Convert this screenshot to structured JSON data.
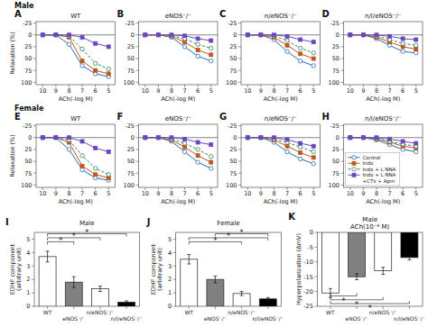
{
  "chart_data": [
    {
      "type": "line",
      "title": "WT",
      "x_label": "ACh(-log M)",
      "y_label": "Relaxation (%)",
      "categories": [
        "10",
        "9",
        "8",
        "7",
        "6",
        "5"
      ],
      "ylim": [
        105,
        -28
      ],
      "yticks": [
        -25,
        0,
        25,
        50,
        75,
        100
      ],
      "series": [
        {
          "name": "Control",
          "marker": "circle-open",
          "line_style": "solid",
          "values": [
            0,
            0,
            20,
            65,
            82,
            88
          ]
        },
        {
          "name": "Indo",
          "marker": "square-filled",
          "line_style": "solid",
          "values": [
            0,
            0,
            5,
            55,
            75,
            82
          ]
        },
        {
          "name": "Indo + L·NNA",
          "marker": "circle-open",
          "line_style": "dashed",
          "values": [
            0,
            0,
            2,
            30,
            60,
            72
          ]
        },
        {
          "name": "Indo + L·NNA\n+CTx + Apm",
          "marker": "square-filled",
          "line_style": "solid",
          "values": [
            0,
            0,
            0,
            5,
            18,
            25
          ]
        }
      ],
      "annotations": [
        {
          "text": "A"
        },
        {
          "text": "Male"
        },
        {
          "y": 0
        }
      ]
    },
    {
      "type": "line",
      "title": "eNOS⁻/⁻",
      "x_label": "ACh(-log M)",
      "categories": [
        "10",
        "9",
        "8",
        "7",
        "6",
        "5"
      ],
      "ylim": [
        105,
        -28
      ],
      "yticks": [
        -25,
        0,
        25,
        50,
        75,
        100
      ],
      "series": [
        {
          "name": "Control",
          "marker": "circle-open",
          "line_style": "solid",
          "values": [
            0,
            0,
            5,
            25,
            45,
            55
          ]
        },
        {
          "name": "Indo",
          "marker": "square-filled",
          "line_style": "solid",
          "values": [
            0,
            0,
            3,
            15,
            32,
            42
          ]
        },
        {
          "name": "Indo + L·NNA",
          "marker": "circle-open",
          "line_style": "dashed",
          "values": [
            0,
            0,
            2,
            8,
            20,
            28
          ]
        },
        {
          "name": "Indo + L·NNA\n+CTx + Apm",
          "marker": "square-filled",
          "line_style": "solid",
          "values": [
            0,
            0,
            0,
            2,
            8,
            12
          ]
        }
      ],
      "annotations": [
        {
          "text": "B"
        },
        {
          "y": 0
        }
      ]
    },
    {
      "type": "line",
      "title": "n/eNOS⁻/⁻",
      "x_label": "ACh(-log M)",
      "categories": [
        "10",
        "9",
        "8",
        "7",
        "6",
        "5"
      ],
      "ylim": [
        105,
        -28
      ],
      "yticks": [
        -25,
        0,
        25,
        50,
        75,
        100
      ],
      "series": [
        {
          "name": "Control",
          "marker": "circle-open",
          "line_style": "solid",
          "values": [
            0,
            0,
            10,
            35,
            55,
            65
          ]
        },
        {
          "name": "Indo",
          "marker": "square-filled",
          "line_style": "solid",
          "values": [
            0,
            0,
            5,
            22,
            40,
            50
          ]
        },
        {
          "name": "Indo + L·NNA",
          "marker": "circle-open",
          "line_style": "dashed",
          "values": [
            0,
            0,
            2,
            12,
            28,
            38
          ]
        },
        {
          "name": "Indo + L·NNA\n+CTx + Apm",
          "marker": "square-filled",
          "line_style": "solid",
          "values": [
            0,
            0,
            0,
            3,
            10,
            15
          ]
        }
      ],
      "annotations": [
        {
          "text": "C"
        },
        {
          "y": 0
        }
      ]
    },
    {
      "type": "line",
      "title": "n/l/eNOS⁻/⁻",
      "x_label": "ACh(-log M)",
      "categories": [
        "10",
        "9",
        "8",
        "7",
        "6",
        "5"
      ],
      "ylim": [
        105,
        -28
      ],
      "yticks": [
        -25,
        0,
        25,
        50,
        75,
        100
      ],
      "series": [
        {
          "name": "Control",
          "marker": "circle-open",
          "line_style": "solid",
          "values": [
            0,
            0,
            8,
            22,
            35,
            38
          ]
        },
        {
          "name": "Indo",
          "marker": "square-filled",
          "line_style": "solid",
          "values": [
            0,
            0,
            5,
            15,
            25,
            30
          ]
        },
        {
          "name": "Indo + L·NNA",
          "marker": "circle-open",
          "line_style": "dashed",
          "values": [
            0,
            0,
            2,
            10,
            18,
            22
          ]
        },
        {
          "name": "Indo + L·NNA\n+CTx + Apm",
          "marker": "square-filled",
          "line_style": "solid",
          "values": [
            0,
            0,
            0,
            3,
            8,
            10
          ]
        }
      ],
      "annotations": [
        {
          "text": "D"
        },
        {
          "y": 0
        }
      ]
    },
    {
      "type": "line",
      "title": "WT",
      "x_label": "ACh(-log M)",
      "y_label": "Relaxation (%)",
      "categories": [
        "10",
        "9",
        "8",
        "7",
        "6",
        "5"
      ],
      "ylim": [
        105,
        -28
      ],
      "yticks": [
        -25,
        0,
        25,
        50,
        75,
        100
      ],
      "series": [
        {
          "name": "Control",
          "marker": "circle-open",
          "line_style": "solid",
          "values": [
            0,
            0,
            25,
            68,
            85,
            90
          ]
        },
        {
          "name": "Indo",
          "marker": "square-filled",
          "line_style": "solid",
          "values": [
            0,
            0,
            10,
            60,
            78,
            85
          ]
        },
        {
          "name": "Indo + L·NNA",
          "marker": "circle-open",
          "line_style": "dashed",
          "values": [
            0,
            0,
            5,
            38,
            65,
            78
          ]
        },
        {
          "name": "Indo + L·NNA\n+CTx + Apm",
          "marker": "square-filled",
          "line_style": "solid",
          "values": [
            0,
            0,
            0,
            8,
            22,
            30
          ]
        }
      ],
      "annotations": [
        {
          "text": "E"
        },
        {
          "text": "Female"
        },
        {
          "y": 0
        }
      ]
    },
    {
      "type": "line",
      "title": "eNOS⁻/⁻",
      "x_label": "ACh(-log M)",
      "categories": [
        "10",
        "9",
        "8",
        "7",
        "6",
        "5"
      ],
      "ylim": [
        105,
        -28
      ],
      "yticks": [
        -25,
        0,
        25,
        50,
        75,
        100
      ],
      "series": [
        {
          "name": "Control",
          "marker": "circle-open",
          "line_style": "solid",
          "values": [
            0,
            0,
            8,
            30,
            52,
            65
          ]
        },
        {
          "name": "Indo",
          "marker": "square-filled",
          "line_style": "solid",
          "values": [
            0,
            0,
            5,
            20,
            38,
            52
          ]
        },
        {
          "name": "Indo + L·NNA",
          "marker": "circle-open",
          "line_style": "dashed",
          "values": [
            0,
            0,
            3,
            12,
            25,
            40
          ]
        },
        {
          "name": "Indo + L·NNA\n+CTx + Apm",
          "marker": "square-filled",
          "line_style": "solid",
          "values": [
            0,
            0,
            0,
            3,
            10,
            15
          ]
        }
      ],
      "annotations": [
        {
          "text": "F"
        },
        {
          "y": 0
        }
      ]
    },
    {
      "type": "line",
      "title": "n/eNOS⁻/⁻",
      "x_label": "ACh(-log M)",
      "categories": [
        "10",
        "9",
        "8",
        "7",
        "6",
        "5"
      ],
      "ylim": [
        105,
        -28
      ],
      "yticks": [
        -25,
        0,
        25,
        50,
        75,
        100
      ],
      "series": [
        {
          "name": "Control",
          "marker": "circle-open",
          "line_style": "solid",
          "values": [
            0,
            0,
            10,
            30,
            45,
            55
          ]
        },
        {
          "name": "Indo",
          "marker": "square-filled",
          "line_style": "solid",
          "values": [
            0,
            0,
            5,
            18,
            32,
            42
          ]
        },
        {
          "name": "Indo + L·NNA",
          "marker": "circle-open",
          "line_style": "dashed",
          "values": [
            0,
            0,
            3,
            10,
            20,
            30
          ]
        },
        {
          "name": "Indo + L·NNA\n+CTx + Apm",
          "marker": "square-filled",
          "line_style": "solid",
          "values": [
            0,
            0,
            0,
            4,
            12,
            18
          ]
        }
      ],
      "annotations": [
        {
          "text": "G"
        },
        {
          "y": 0
        }
      ]
    },
    {
      "type": "line",
      "title": "n/l/eNOS⁻/⁻",
      "x_label": "ACh(-log M)",
      "categories": [
        "10",
        "9",
        "8",
        "7",
        "6",
        "5"
      ],
      "ylim": [
        105,
        -28
      ],
      "yticks": [
        -25,
        0,
        25,
        50,
        75,
        100
      ],
      "legend": "lower left",
      "series": [
        {
          "name": "Control",
          "marker": "circle-open",
          "line_style": "solid",
          "values": [
            0,
            0,
            5,
            15,
            25,
            30
          ]
        },
        {
          "name": "Indo",
          "marker": "square-filled",
          "line_style": "solid",
          "values": [
            0,
            0,
            3,
            10,
            18,
            22
          ]
        },
        {
          "name": "Indo + L·NNA",
          "marker": "circle-open",
          "line_style": "dashed",
          "values": [
            0,
            0,
            2,
            8,
            14,
            18
          ]
        },
        {
          "name": "Indo + L·NNA\n+CTx + Apm",
          "marker": "square-filled",
          "line_style": "solid",
          "values": [
            0,
            0,
            0,
            3,
            8,
            12
          ]
        }
      ],
      "annotations": [
        {
          "text": "H"
        },
        {
          "y": 0
        }
      ]
    },
    {
      "type": "bar",
      "title": "Male",
      "y_label": "EDHF component\n(arbitrary unit)",
      "categories": [
        "WT",
        "eNOS⁻/⁻",
        "n/eNOS⁻/⁻",
        "n/l/eNOS⁻/⁻"
      ],
      "values": [
        3.7,
        1.8,
        1.3,
        0.3
      ],
      "errors": [
        0.4,
        0.4,
        0.2,
        0.1
      ],
      "colors": [
        "white",
        "#808080",
        "white",
        "black"
      ],
      "ylim": [
        0,
        5.5
      ],
      "yticks": [
        0,
        1,
        2,
        3,
        4,
        5
      ],
      "annotations": [
        {
          "text": "I"
        },
        {
          "text": "*",
          "between": [
            "WT",
            "eNOS⁻/⁻"
          ],
          "y": 4.8
        },
        {
          "text": "*",
          "between": [
            "WT",
            "n/eNOS⁻/⁻"
          ],
          "y": 5.1
        },
        {
          "text": "*",
          "between": [
            "WT",
            "n/l/eNOS⁻/⁻"
          ],
          "y": 5.4
        }
      ]
    },
    {
      "type": "bar",
      "title": "Female",
      "y_label": "EDHF component\n(arbitrary unit)",
      "categories": [
        "WT",
        "eNOS⁻/⁻",
        "n/eNOS⁻/⁻",
        "n/l/eNOS⁻/⁻"
      ],
      "values": [
        3.5,
        2.0,
        0.95,
        0.55
      ],
      "errors": [
        0.35,
        0.25,
        0.15,
        0.1
      ],
      "colors": [
        "white",
        "#808080",
        "white",
        "black"
      ],
      "ylim": [
        0,
        5.5
      ],
      "yticks": [
        0,
        1,
        2,
        3,
        4,
        5
      ],
      "annotations": [
        {
          "text": "J"
        },
        {
          "text": "*",
          "between": [
            "WT",
            "n/eNOS⁻/⁻"
          ],
          "y": 4.8
        },
        {
          "text": "*",
          "between": [
            "WT",
            "n/l/eNOS⁻/⁻"
          ],
          "y": 5.1
        },
        {
          "text": "*",
          "between": [
            "eNOS⁻/⁻",
            "n/l/eNOS⁻/⁻"
          ],
          "y": 5.4
        }
      ]
    },
    {
      "type": "bar",
      "title": "Male\nACh(10⁻⁶ M)",
      "y_label": "Hyperpolarization (ΔmV)",
      "categories": [
        "WT",
        "eNOS⁻/⁻",
        "n/eNOS⁻/⁻",
        "n/l/eNOS⁻/⁻"
      ],
      "values": [
        -20.5,
        -15.0,
        -13.0,
        -8.5
      ],
      "errors": [
        1.5,
        1.0,
        1.2,
        0.8
      ],
      "colors": [
        "white",
        "#808080",
        "white",
        "black"
      ],
      "ylim": [
        -25,
        0
      ],
      "yticks": [
        0,
        -5,
        -10,
        -15,
        -20,
        -25
      ],
      "annotations": [
        {
          "text": "K"
        },
        {
          "text": "*",
          "between": [
            "WT",
            "eNOS⁻/⁻"
          ],
          "y": -21.5
        },
        {
          "text": "*",
          "between": [
            "WT",
            "n/eNOS⁻/⁻"
          ],
          "y": -22.8
        },
        {
          "text": "*",
          "between": [
            "WT",
            "n/l/eNOS⁻/⁻"
          ],
          "y": -24.1
        }
      ]
    }
  ]
}
